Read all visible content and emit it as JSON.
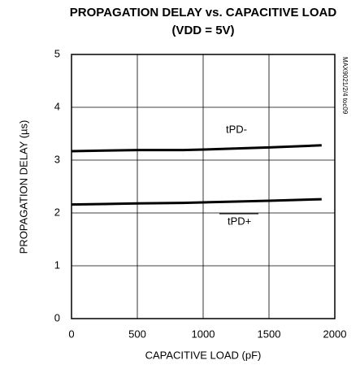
{
  "chart_data": {
    "type": "line",
    "title": "PROPAGATION DELAY vs. CAPACITIVE LOAD",
    "subtitle": "(VDD = 5V)",
    "x_label": "CAPACITIVE LOAD (pF)",
    "y_label": "PROPAGATION DELAY (µs)",
    "side_note": "MAX9021/2/4 toc09",
    "x": [
      0,
      250,
      500,
      850,
      1000,
      1500,
      1900
    ],
    "series": [
      {
        "name": "tPD-",
        "color": "#000000",
        "values": [
          3.17,
          3.18,
          3.19,
          3.19,
          3.2,
          3.24,
          3.28
        ]
      },
      {
        "name": "tPD+",
        "color": "#000000",
        "values": [
          2.16,
          2.17,
          2.18,
          2.19,
          2.2,
          2.23,
          2.26
        ]
      }
    ],
    "xlim": [
      0,
      2000
    ],
    "xticks": [
      0,
      500,
      1000,
      1500,
      2000
    ],
    "ylim": [
      0,
      5
    ],
    "yticks": [
      0,
      1,
      2,
      3,
      4,
      5
    ],
    "grid": true
  }
}
